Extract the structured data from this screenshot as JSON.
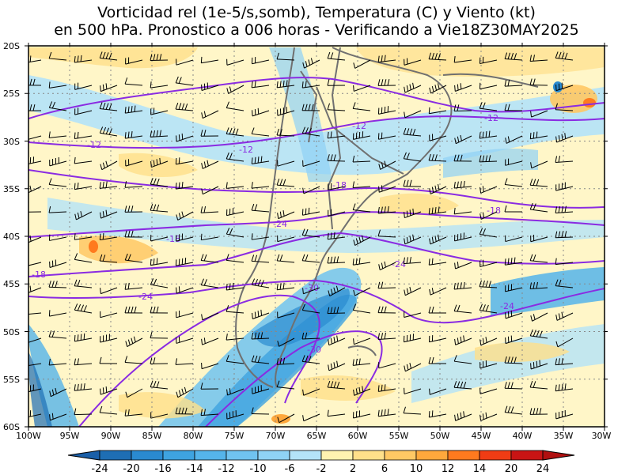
{
  "title": {
    "line1": "Vorticidad rel (1e-5/s,somb), Temperatura (C) y Viento (kt)",
    "line2": "en 500 hPa. Pronostico a 006 horas - Verificando a Vie18Z30MAY2025"
  },
  "axes": {
    "lat_labels": [
      "20S",
      "25S",
      "30S",
      "35S",
      "40S",
      "45S",
      "50S",
      "55S",
      "60S"
    ],
    "lon_labels": [
      "100W",
      "95W",
      "90W",
      "85W",
      "80W",
      "75W",
      "70W",
      "65W",
      "60W",
      "55W",
      "50W",
      "45W",
      "40W",
      "35W",
      "30W"
    ]
  },
  "contours": {
    "labels": [
      "-12",
      "-12",
      "-12",
      "-12",
      "-18",
      "-18",
      "-18",
      "-18",
      "-24",
      "-24",
      "-24",
      "-24",
      "-30",
      "-30"
    ]
  },
  "colorbar": {
    "labels": [
      "-24",
      "-20",
      "-16",
      "-14",
      "-12",
      "-10",
      "-6",
      "-2",
      "2",
      "6",
      "10",
      "12",
      "14",
      "20",
      "24"
    ],
    "colors": [
      "#1e6eb4",
      "#2a8ad0",
      "#3ea3e0",
      "#55b4ea",
      "#70c3f0",
      "#8fd2f5",
      "#b4e3f8",
      "#ffffff",
      "#fff3b0",
      "#ffe08a",
      "#ffc864",
      "#ffa83c",
      "#ff7a1e",
      "#f03c14",
      "#c81414"
    ]
  },
  "colors": {
    "contour": "#8a2be2",
    "coast": "#707070",
    "grid": "#888888"
  }
}
